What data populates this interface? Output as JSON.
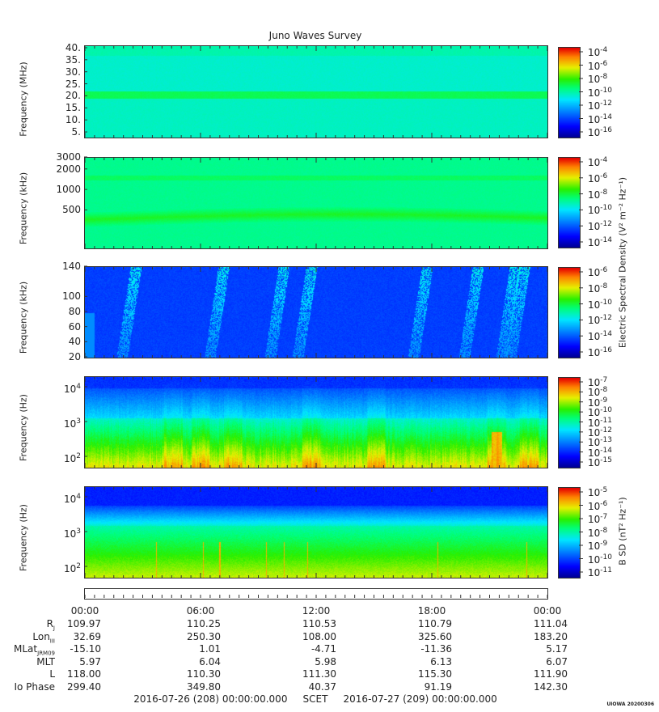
{
  "title": "Juno Waves Survey",
  "chart_data": [
    {
      "type": "heatmap",
      "name": "hfr-high",
      "ylabel": "Frequency (MHz)",
      "ytick_labels": [
        "40.",
        "35.",
        "30.",
        "25.",
        "20.",
        "15.",
        "10.",
        "5."
      ],
      "yticks": [
        40,
        35,
        30,
        25,
        20,
        15,
        10,
        5
      ],
      "ylim": [
        3,
        41
      ],
      "yscale": "linear",
      "colorbar_ticks": [
        "10",
        "10",
        "10",
        "10",
        "10",
        "10",
        "10"
      ],
      "colorbar_exps": [
        "-4",
        "-6",
        "-8",
        "-10",
        "-12",
        "-14",
        "-16"
      ]
    },
    {
      "type": "heatmap",
      "name": "hfr-low",
      "ylabel": "Frequency (kHz)",
      "ytick_labels": [
        "3000",
        "2000",
        "1000",
        "500"
      ],
      "yticks": [
        3000,
        2000,
        1000,
        500
      ],
      "ylim": [
        140,
        3000
      ],
      "yscale": "log",
      "colorbar_ticks": [
        "10",
        "10",
        "10",
        "10",
        "10",
        "10"
      ],
      "colorbar_exps": [
        "-4",
        "-6",
        "-8",
        "-10",
        "-12",
        "-14"
      ]
    },
    {
      "type": "heatmap",
      "name": "lfr-high",
      "ylabel": "Frequency (kHz)",
      "ytick_labels": [
        "140",
        "100",
        "80",
        "60",
        "40",
        "20"
      ],
      "yticks": [
        140,
        100,
        80,
        60,
        40,
        20
      ],
      "ylim": [
        20,
        140
      ],
      "yscale": "linear",
      "colorbar_ticks": [
        "10",
        "10",
        "10",
        "10",
        "10",
        "10"
      ],
      "colorbar_exps": [
        "-6",
        "-8",
        "-10",
        "-12",
        "-14",
        "-16"
      ]
    },
    {
      "type": "heatmap",
      "name": "lfr-low-e",
      "ylabel": "Frequency (Hz)",
      "ytick_labels": [
        "10",
        "10",
        "10"
      ],
      "ytick_exps": [
        "4",
        "3",
        "2"
      ],
      "yticks": [
        10000,
        1000,
        100
      ],
      "ylim": [
        50,
        20000
      ],
      "yscale": "log",
      "colorbar_ticks": [
        "10",
        "10",
        "10",
        "10",
        "10",
        "10",
        "10",
        "10",
        "10"
      ],
      "colorbar_exps": [
        "-7",
        "-8",
        "-9",
        "-10",
        "-11",
        "-12",
        "-13",
        "-14",
        "-15"
      ]
    },
    {
      "type": "heatmap",
      "name": "lfr-low-b",
      "ylabel": "Frequency (Hz)",
      "ytick_labels": [
        "10",
        "10",
        "10"
      ],
      "ytick_exps": [
        "4",
        "3",
        "2"
      ],
      "yticks": [
        10000,
        1000,
        100
      ],
      "ylim": [
        50,
        20000
      ],
      "yscale": "log",
      "colorbar_ticks": [
        "10",
        "10",
        "10",
        "10",
        "10",
        "10",
        "10"
      ],
      "colorbar_exps": [
        "-5",
        "-6",
        "-7",
        "-8",
        "-9",
        "-10",
        "-11"
      ]
    }
  ],
  "e_colorbar_label": "Electric Spectral Density (V² m⁻² Hz⁻¹)",
  "b_colorbar_label": "B SD (nT² Hz⁻¹)",
  "x_axis": {
    "tick_labels": [
      "00:00",
      "06:00",
      "12:00",
      "18:00",
      "00:00"
    ],
    "xlim_hours": [
      0,
      24
    ]
  },
  "ephemeris": {
    "rows": [
      {
        "label": "R",
        "sub": "J",
        "values": [
          "109.97",
          "110.25",
          "110.53",
          "110.79",
          "111.04"
        ]
      },
      {
        "label": "Lon",
        "sub": "III",
        "values": [
          "32.69",
          "250.30",
          "108.00",
          "325.60",
          "183.20"
        ]
      },
      {
        "label": "MLat",
        "sub": "JRM09",
        "values": [
          "-15.10",
          "1.01",
          "-4.71",
          "-11.36",
          "5.17"
        ]
      },
      {
        "label": "MLT",
        "sub": "",
        "values": [
          "5.97",
          "6.04",
          "5.98",
          "6.13",
          "6.07"
        ]
      },
      {
        "label": "L",
        "sub": "",
        "values": [
          "118.00",
          "110.30",
          "111.30",
          "115.30",
          "111.90"
        ]
      },
      {
        "label": "Io Phase",
        "sub": "",
        "values": [
          "299.40",
          "349.80",
          "40.37",
          "91.19",
          "142.30"
        ]
      }
    ]
  },
  "footer": {
    "start": "2016-07-26 (208) 00:00:00.000",
    "scet": "SCET",
    "end": "2016-07-27 (209) 00:00:00.000"
  },
  "stamp": "UIOWA 20200306"
}
